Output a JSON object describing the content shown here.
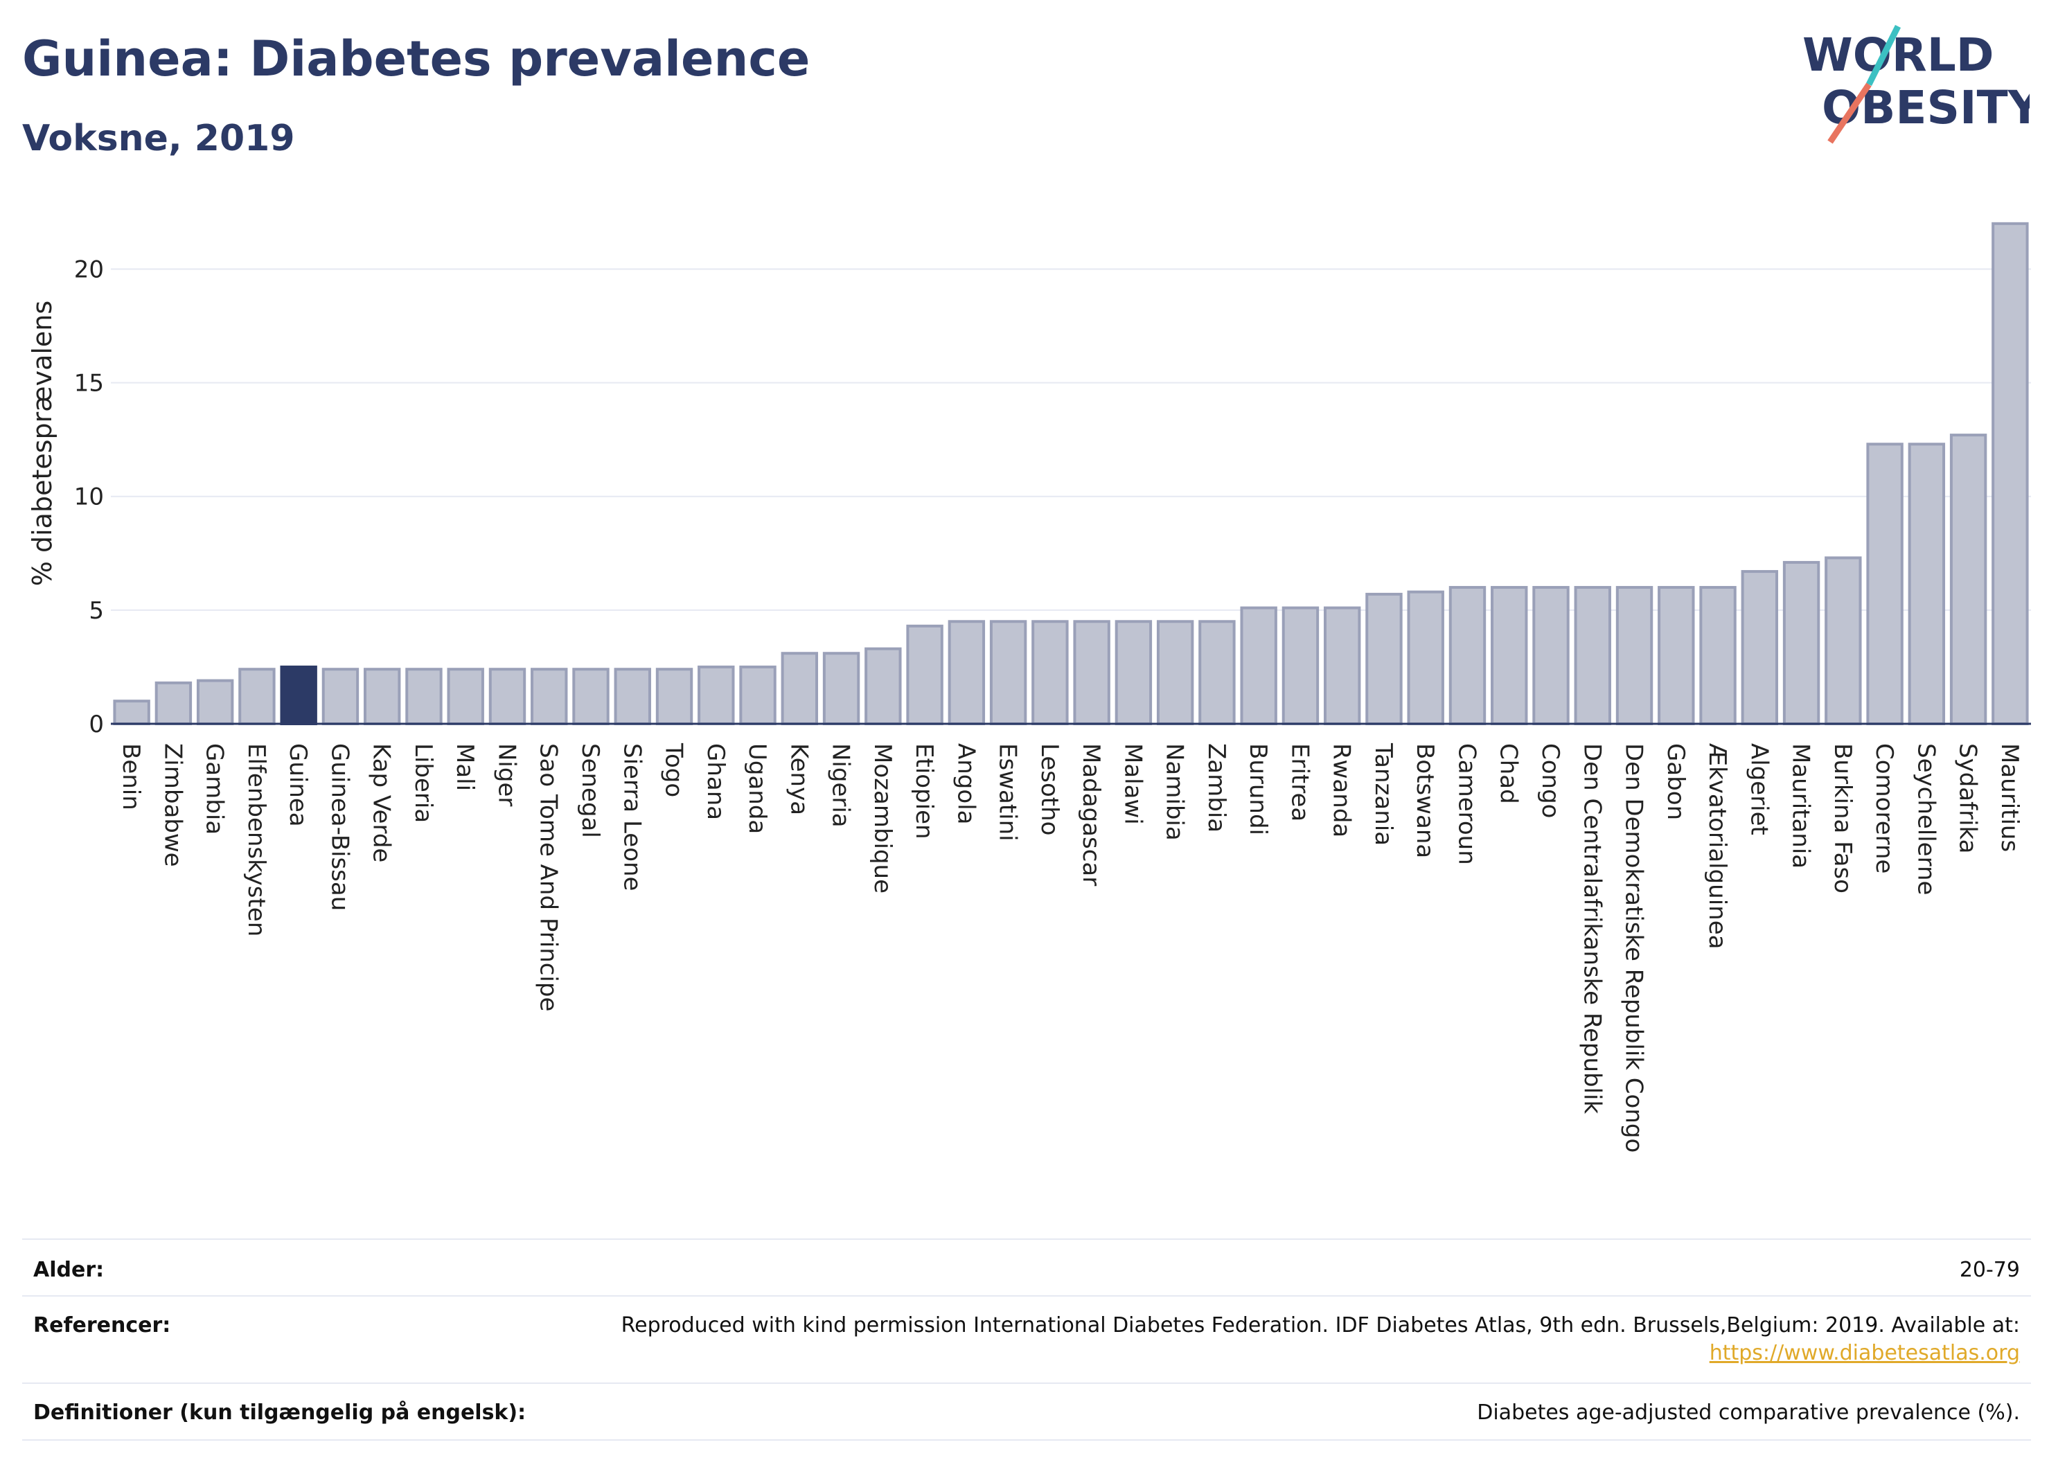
{
  "header": {
    "title": "Guinea: Diabetes prevalence",
    "subtitle": "Voksne, 2019",
    "logo_line1": "WORLD",
    "logo_line2": "OBESITY"
  },
  "colors": {
    "bar": "#bfc3d1",
    "bar_stroke": "#9aa0b8",
    "highlight": "#2c3a66",
    "grid": "#e6e9f2",
    "axis": "#2c3a66",
    "link": "#e0a929",
    "logo_teal": "#3cc0c2",
    "logo_coral": "#e8745f"
  },
  "chart_data": {
    "type": "bar",
    "title": "Guinea: Diabetes prevalence",
    "subtitle": "Voksne, 2019",
    "xlabel": "",
    "ylabel": "% diabetesprævalens",
    "ylim": [
      0,
      23
    ],
    "yticks": [
      0,
      5,
      10,
      15,
      20
    ],
    "grid": true,
    "highlight": "Guinea",
    "categories": [
      "Benin",
      "Zimbabwe",
      "Gambia",
      "Elfenbenskysten",
      "Guinea",
      "Guinea-Bissau",
      "Kap Verde",
      "Liberia",
      "Mali",
      "Niger",
      "Sao Tome And Principe",
      "Senegal",
      "Sierra Leone",
      "Togo",
      "Ghana",
      "Uganda",
      "Kenya",
      "Nigeria",
      "Mozambique",
      "Etiopien",
      "Angola",
      "Eswatini",
      "Lesotho",
      "Madagascar",
      "Malawi",
      "Namibia",
      "Zambia",
      "Burundi",
      "Eritrea",
      "Rwanda",
      "Tanzania",
      "Botswana",
      "Cameroun",
      "Chad",
      "Congo",
      "Den Centralafrikanske Republik",
      "Den Demokratiske Republik Congo",
      "Gabon",
      "Ækvatorialguinea",
      "Algeriet",
      "Mauritania",
      "Burkina Faso",
      "Comorerne",
      "Seychellerne",
      "Sydafrika",
      "Mauritius"
    ],
    "values": [
      1.0,
      1.8,
      1.9,
      2.4,
      2.5,
      2.4,
      2.4,
      2.4,
      2.4,
      2.4,
      2.4,
      2.4,
      2.4,
      2.4,
      2.5,
      2.5,
      3.1,
      3.1,
      3.3,
      4.3,
      4.5,
      4.5,
      4.5,
      4.5,
      4.5,
      4.5,
      4.5,
      5.1,
      5.1,
      5.1,
      5.7,
      5.8,
      6.0,
      6.0,
      6.0,
      6.0,
      6.0,
      6.0,
      6.0,
      6.7,
      7.1,
      7.3,
      12.3,
      12.3,
      12.7,
      22.0
    ]
  },
  "meta": {
    "age_label": "Alder:",
    "age_value": "20-79",
    "ref_label": "Referencer:",
    "ref_value": "Reproduced with kind permission International Diabetes Federation. IDF Diabetes Atlas, 9th edn. Brussels,Belgium: 2019. Available at:",
    "ref_link": "https://www.diabetesatlas.org",
    "def_label": "Definitioner (kun tilgængelig på engelsk):",
    "def_value": "Diabetes age-adjusted comparative prevalence (%)."
  }
}
